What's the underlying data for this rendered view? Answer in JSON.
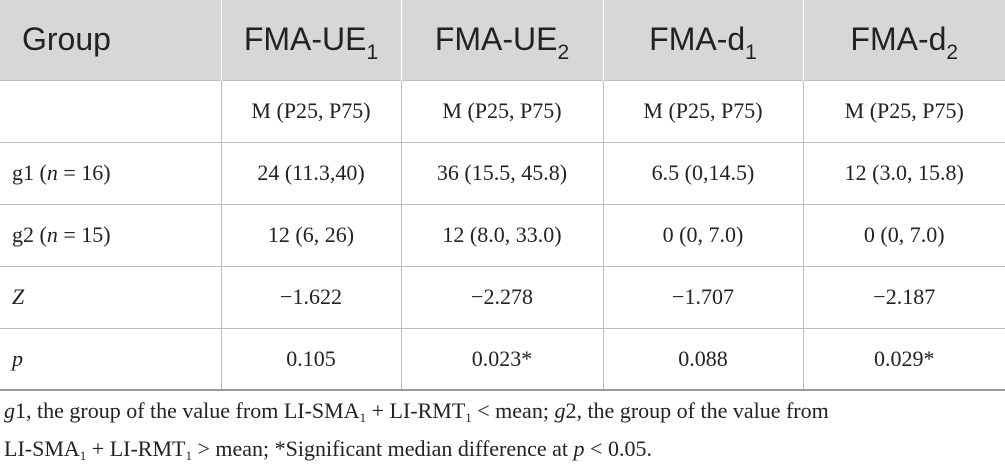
{
  "table": {
    "headers": [
      {
        "main": "Group",
        "sub": ""
      },
      {
        "main": "FMA-UE",
        "sub": "1"
      },
      {
        "main": "FMA-UE",
        "sub": "2"
      },
      {
        "main": "FMA-d",
        "sub": "1"
      },
      {
        "main": "FMA-d",
        "sub": "2"
      }
    ],
    "stat_label_row": [
      "",
      "M (P25, P75)",
      "M (P25, P75)",
      "M (P25, P75)",
      "M (P25, P75)"
    ],
    "rows": [
      {
        "label": "g1",
        "n_var": "n",
        "n_val": " = 16)",
        "cells": [
          "24 (11.3,40)",
          "36 (15.5, 45.8)",
          "6.5 (0,14.5)",
          "12 (3.0, 15.8)"
        ]
      },
      {
        "label": "g2",
        "n_var": "n",
        "n_val": " = 15)",
        "cells": [
          "12 (6, 26)",
          "12 (8.0, 33.0)",
          "0 (0, 7.0)",
          "0 (0, 7.0)"
        ]
      },
      {
        "label": "Z",
        "cells": [
          "−1.622",
          "−2.278",
          "−1.707",
          "−2.187"
        ]
      },
      {
        "label": "p",
        "cells": [
          "0.105",
          "0.023*",
          "0.088",
          "0.029*"
        ]
      }
    ]
  },
  "footnote": {
    "g1": "g",
    "g1_rest": "1, the group of the value from LI-SMA",
    "sub1": "1",
    "plus1": " + LI-RMT",
    "sub2": "1",
    "lt_mean": " < mean; ",
    "g2": "g",
    "g2_rest": "2, the group of the value from",
    "line2_a": "LI-SMA",
    "sub3": "1",
    "plus2": " + LI-RMT",
    "sub4": "1",
    "gt_mean": " > mean; *Significant median difference at ",
    "p": "p",
    "p_rest": " < 0.05."
  }
}
